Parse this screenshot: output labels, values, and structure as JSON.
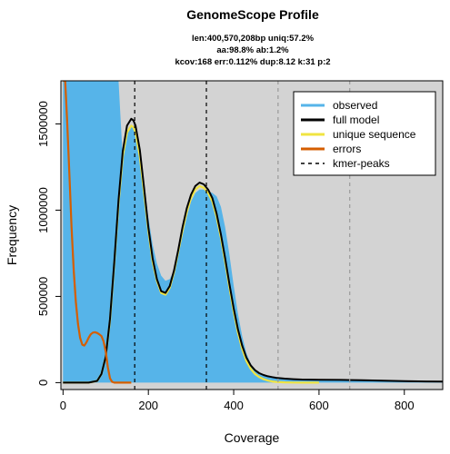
{
  "chart_data": {
    "type": "area",
    "title": "GenomeScope Profile",
    "subtitle_lines": [
      "len:400,570,208bp uniq:57.2%",
      "aa:98.8% ab:1.2%",
      "kcov:168 err:0.112%  dup:8.12  k:31 p:2"
    ],
    "xlabel": "Coverage",
    "ylabel": "Frequency",
    "xlim": [
      -5,
      890
    ],
    "ylim": [
      -40000,
      1750000
    ],
    "xticks": [
      0,
      200,
      400,
      600,
      800
    ],
    "yticks": [
      0,
      500000,
      1000000,
      1500000
    ],
    "ytick_labels": [
      "0",
      "500000",
      "1000000",
      "1500000"
    ],
    "kmer_peaks": [
      168,
      336,
      504,
      672
    ],
    "legend_position": "top-right",
    "legend": [
      {
        "name": "observed",
        "color": "#56B4E9",
        "style": "solid"
      },
      {
        "name": "full model",
        "color": "#000000",
        "style": "solid"
      },
      {
        "name": "unique sequence",
        "color": "#F0E442",
        "style": "solid"
      },
      {
        "name": "errors",
        "color": "#D55E00",
        "style": "solid"
      },
      {
        "name": "kmer-peaks",
        "color": "#000000",
        "style": "dashed"
      }
    ],
    "series": [
      {
        "name": "observed",
        "x": [
          0,
          10,
          20,
          30,
          40,
          50,
          60,
          70,
          80,
          90,
          100,
          110,
          120,
          130,
          140,
          150,
          160,
          165,
          170,
          180,
          190,
          200,
          210,
          220,
          230,
          240,
          250,
          260,
          270,
          280,
          290,
          300,
          310,
          320,
          330,
          340,
          350,
          360,
          370,
          380,
          390,
          400,
          410,
          420,
          430,
          440,
          450,
          460,
          470,
          480,
          490,
          500,
          520,
          540,
          560,
          600,
          650,
          700,
          750,
          800,
          850,
          890
        ],
        "y": [
          1750000,
          1750000,
          1750000,
          1750000,
          1750000,
          1750000,
          1750000,
          1750000,
          1750000,
          1750000,
          1750000,
          1750000,
          1750000,
          1750000,
          1300000,
          1450000,
          1490000,
          1480000,
          1440000,
          1320000,
          1140000,
          960000,
          800000,
          690000,
          620000,
          590000,
          600000,
          650000,
          740000,
          850000,
          960000,
          1050000,
          1100000,
          1120000,
          1120000,
          1110000,
          1100000,
          1080000,
          1020000,
          900000,
          740000,
          560000,
          400000,
          270000,
          170000,
          110000,
          75000,
          55000,
          42000,
          35000,
          30000,
          27000,
          23000,
          20000,
          18000,
          17000,
          15000,
          13000,
          11000,
          9000,
          7000,
          6000
        ]
      },
      {
        "name": "full model",
        "x": [
          0,
          60,
          80,
          90,
          100,
          110,
          120,
          130,
          140,
          150,
          160,
          165,
          170,
          180,
          190,
          200,
          210,
          220,
          230,
          240,
          250,
          260,
          270,
          280,
          290,
          300,
          310,
          320,
          330,
          340,
          350,
          360,
          370,
          380,
          390,
          400,
          410,
          420,
          430,
          440,
          450,
          460,
          470,
          480,
          490,
          500,
          520,
          540,
          560,
          600,
          650,
          700,
          750,
          800,
          850,
          890
        ],
        "y": [
          0,
          0,
          10000,
          50000,
          150000,
          370000,
          700000,
          1060000,
          1340000,
          1490000,
          1530000,
          1520000,
          1490000,
          1350000,
          1130000,
          900000,
          720000,
          600000,
          530000,
          520000,
          560000,
          650000,
          770000,
          900000,
          1010000,
          1090000,
          1140000,
          1160000,
          1150000,
          1120000,
          1070000,
          980000,
          860000,
          720000,
          570000,
          430000,
          310000,
          215000,
          145000,
          100000,
          72000,
          55000,
          44000,
          37000,
          32000,
          28000,
          23000,
          20000,
          18000,
          17000,
          16000,
          14000,
          11000,
          9000,
          7000,
          6000
        ]
      },
      {
        "name": "unique sequence",
        "x": [
          0,
          60,
          80,
          90,
          100,
          110,
          120,
          130,
          140,
          150,
          160,
          165,
          170,
          180,
          190,
          200,
          210,
          220,
          230,
          240,
          250,
          260,
          270,
          280,
          290,
          300,
          310,
          320,
          330,
          340,
          350,
          360,
          370,
          380,
          390,
          400,
          410,
          420,
          430,
          440,
          450,
          460,
          470,
          480,
          490,
          500,
          520,
          540,
          560,
          600
        ],
        "y": [
          0,
          0,
          10000,
          50000,
          150000,
          360000,
          690000,
          1040000,
          1310000,
          1450000,
          1490000,
          1480000,
          1450000,
          1310000,
          1100000,
          880000,
          700000,
          590000,
          520000,
          510000,
          550000,
          640000,
          760000,
          880000,
          990000,
          1070000,
          1120000,
          1140000,
          1130000,
          1100000,
          1050000,
          960000,
          840000,
          700000,
          550000,
          410000,
          290000,
          195000,
          125000,
          80000,
          50000,
          32000,
          20000,
          12000,
          7000,
          4000,
          1500,
          500,
          0,
          0
        ]
      },
      {
        "name": "errors",
        "x": [
          0,
          5,
          10,
          15,
          20,
          25,
          30,
          35,
          40,
          45,
          50,
          55,
          60,
          65,
          70,
          75,
          80,
          85,
          90,
          95,
          100,
          105,
          110,
          115,
          120,
          125,
          130,
          140,
          150,
          160
        ],
        "y": [
          1750000,
          1750000,
          1500000,
          1200000,
          900000,
          650000,
          470000,
          340000,
          260000,
          220000,
          215000,
          235000,
          260000,
          280000,
          290000,
          292000,
          288000,
          280000,
          270000,
          240000,
          180000,
          90000,
          25000,
          5000,
          0,
          0,
          0,
          0,
          0,
          0
        ]
      }
    ]
  }
}
